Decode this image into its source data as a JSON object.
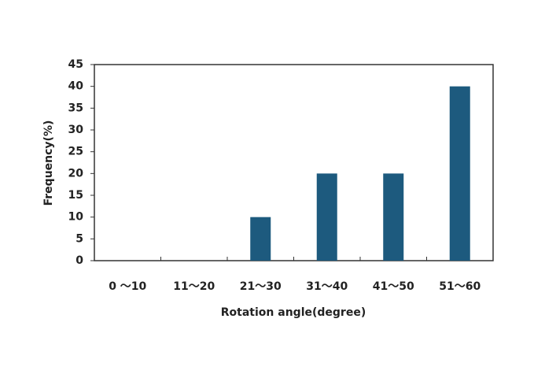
{
  "chart_data": {
    "type": "bar",
    "x_label": "Rotation angle(degree)",
    "y_label": "Frequency(%)",
    "categories": [
      "0 ～10",
      "11～20",
      "21～30",
      "31～40",
      "41～50",
      "51～60"
    ],
    "values": [
      0,
      0,
      10,
      20,
      20,
      40
    ],
    "color": "#1d5a7e",
    "ylim": [
      0,
      45
    ],
    "yticks": [
      0,
      5,
      10,
      15,
      20,
      25,
      30,
      35,
      40,
      45
    ],
    "grid": false
  }
}
